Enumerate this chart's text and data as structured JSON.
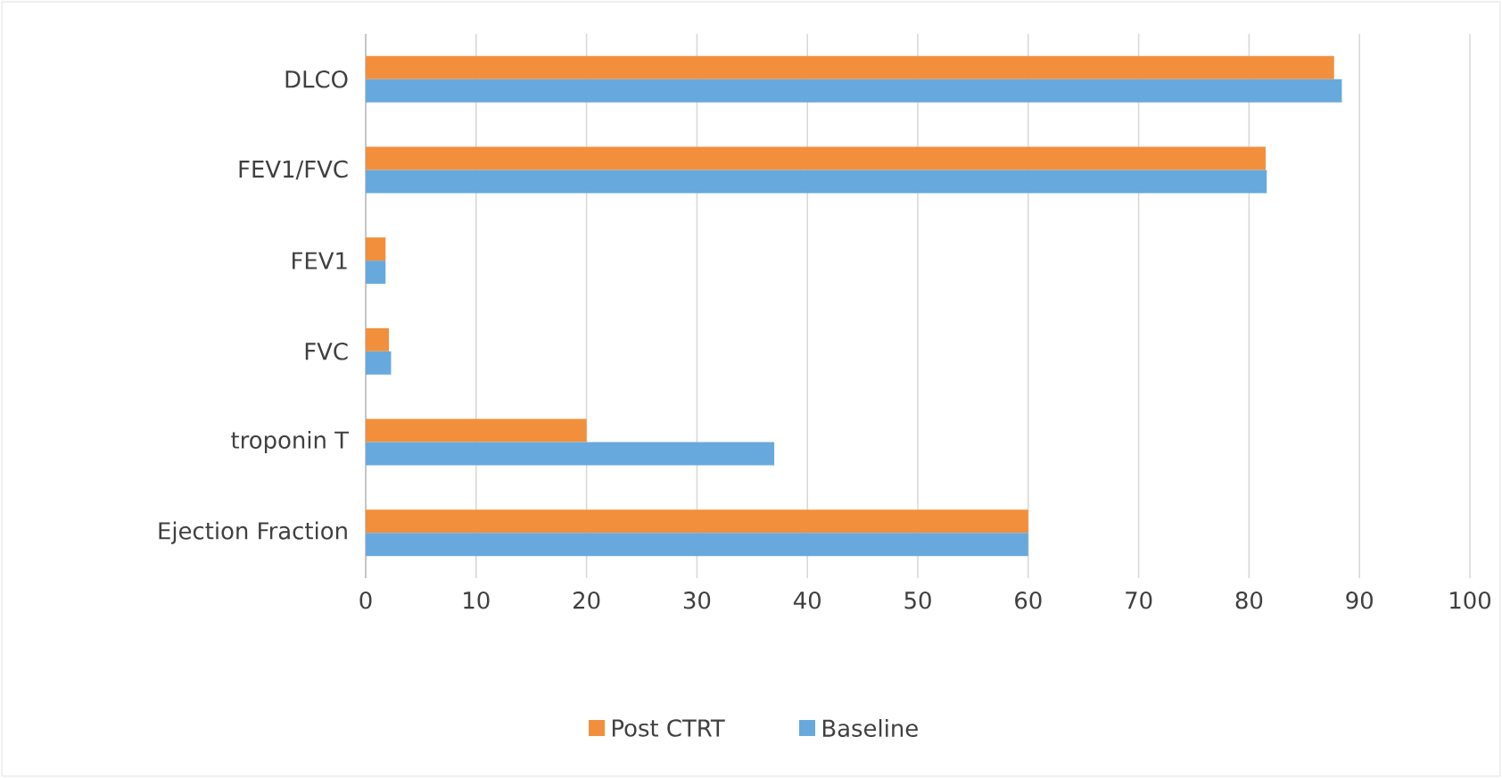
{
  "chart_data": {
    "type": "bar",
    "orientation": "horizontal",
    "categories": [
      "DLCO",
      "FEV1/FVC",
      "FEV1",
      "FVC",
      "troponin T",
      "Ejection Fraction"
    ],
    "series": [
      {
        "name": "Post CTRT",
        "color": "#f28f3c",
        "values": [
          87.7,
          81.5,
          1.8,
          2.1,
          20,
          60
        ]
      },
      {
        "name": "Baseline",
        "color": "#67a9dc",
        "values": [
          88.4,
          81.6,
          1.8,
          2.3,
          37,
          60
        ]
      }
    ],
    "xlim": [
      0,
      100
    ],
    "xticks": [
      0,
      10,
      20,
      30,
      40,
      50,
      60,
      70,
      80,
      90,
      100
    ],
    "grid": "x",
    "legend": "bottom"
  }
}
